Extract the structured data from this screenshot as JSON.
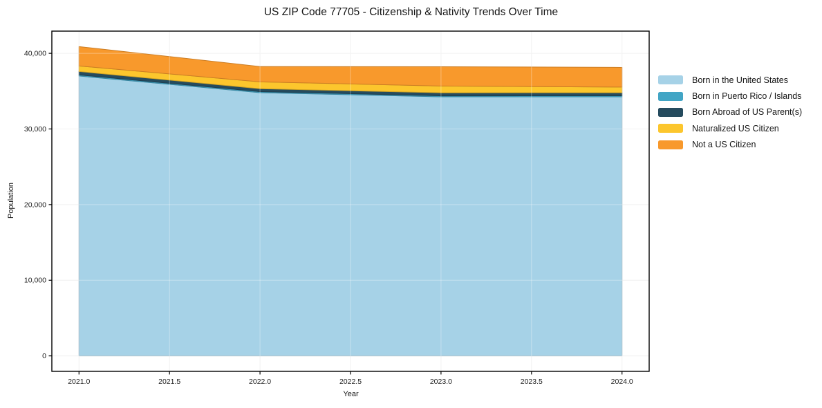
{
  "chart_data": {
    "type": "area",
    "stacked": true,
    "title": "US ZIP Code 77705 - Citizenship & Nativity Trends Over Time",
    "xlabel": "Year",
    "ylabel": "Population",
    "x": [
      2021,
      2022,
      2023,
      2024
    ],
    "series": [
      {
        "name": "Born in the United States",
        "color": "#a6d2e7",
        "values": [
          37000,
          34800,
          34250,
          34250
        ]
      },
      {
        "name": "Born in Puerto Rico / Islands",
        "color": "#42a5c5",
        "values": [
          140,
          140,
          130,
          140
        ]
      },
      {
        "name": "Born Abroad of US Parent(s)",
        "color": "#254b5e",
        "values": [
          460,
          380,
          400,
          400
        ]
      },
      {
        "name": "Naturalized US Citizen",
        "color": "#fcc62d",
        "values": [
          730,
          910,
          900,
          750
        ]
      },
      {
        "name": "Not a US Citizen",
        "color": "#f8992c",
        "values": [
          2560,
          2020,
          2550,
          2600
        ]
      }
    ],
    "xlim": [
      2020.85,
      2024.15
    ],
    "ylim": [
      -2045,
      42935
    ],
    "xticks": {
      "values": [
        2021.0,
        2021.5,
        2022.0,
        2022.5,
        2023.0,
        2023.5,
        2024.0
      ],
      "labels": [
        "2021.0",
        "2021.5",
        "2022.0",
        "2022.5",
        "2023.0",
        "2023.5",
        "2024.0"
      ]
    },
    "yticks": {
      "values": [
        0,
        10000,
        20000,
        30000,
        40000
      ],
      "labels": [
        "0",
        "10,000",
        "20,000",
        "30,000",
        "40,000"
      ]
    },
    "grid": true,
    "legend_position": "right-outside"
  },
  "colors": {
    "background": "#ffffff",
    "axis_border": "#000000",
    "grid": "#ebebeb",
    "grid_overlay": "rgba(255,255,255,0.35)",
    "tick_text": "#1a1a1a"
  }
}
